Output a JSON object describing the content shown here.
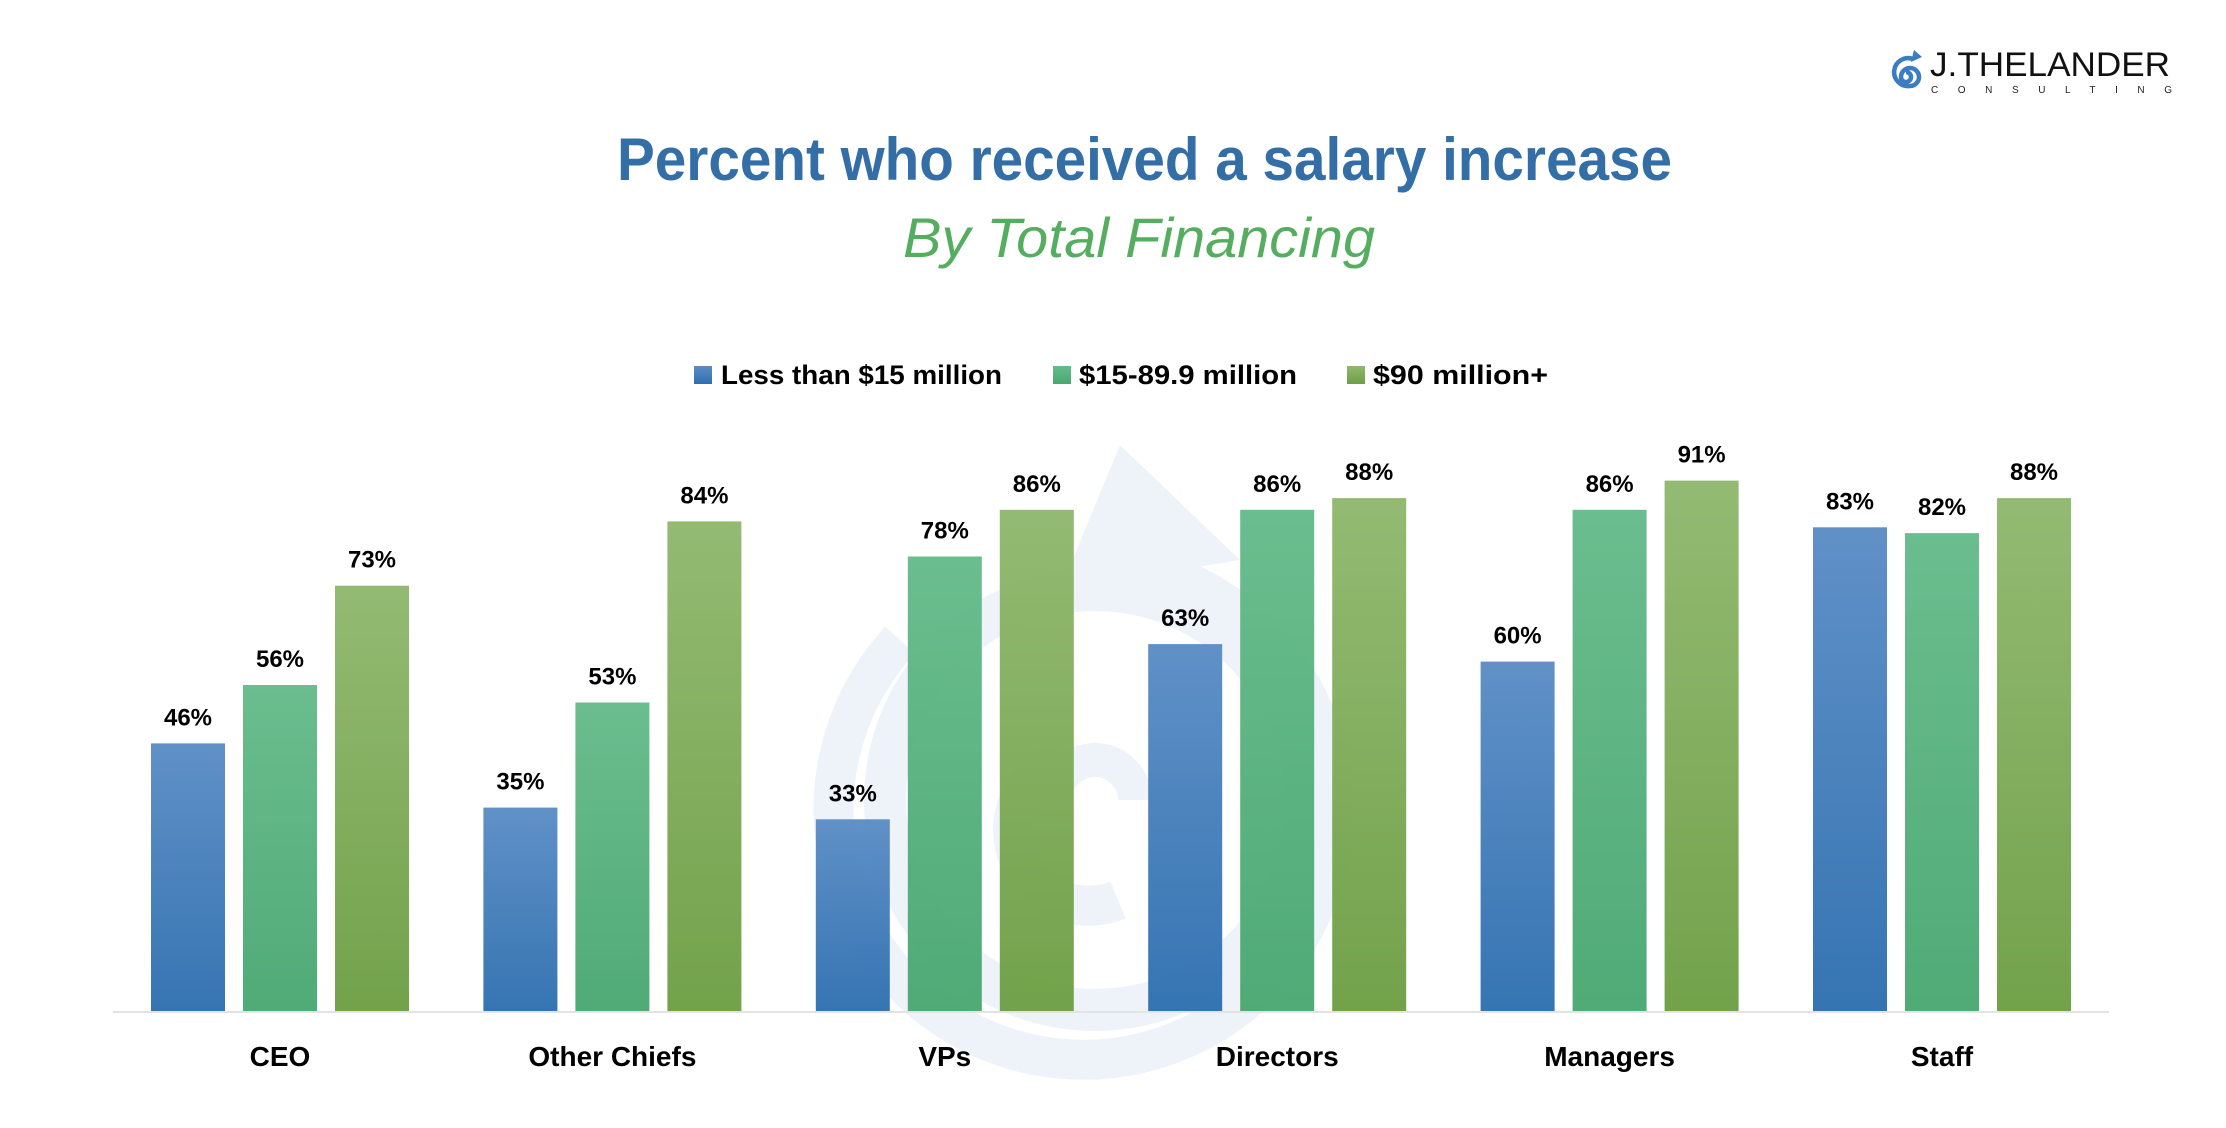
{
  "logo": {
    "name": "J.THELANDER",
    "tagline": "CONSULTING",
    "icon": "spiral-arrow-icon",
    "color": "#3b7dc0"
  },
  "watermark": {
    "icon": "spiral-arrow-icon",
    "color": "#eef3f9"
  },
  "colors": {
    "title": "#336fa6",
    "subtitle": "#55ad5f",
    "axis": "#e3e3e3"
  },
  "chart_data": {
    "type": "bar",
    "title": "Percent who received a salary increase",
    "subtitle": "By Total Financing",
    "xlabel": "",
    "ylabel": "",
    "ylim": [
      0,
      100
    ],
    "grid": false,
    "legend_position": "top-center",
    "categories": [
      "CEO",
      "Other Chiefs",
      "VPs",
      "Directors",
      "Managers",
      "Staff"
    ],
    "series": [
      {
        "name": "Less than $15 million",
        "color_top": "#5b8dc5",
        "color_bottom": "#2f70b0",
        "values": [
          46,
          35,
          33,
          63,
          60,
          83
        ],
        "labels": [
          "46%",
          "35%",
          "33%",
          "63%",
          "60%",
          "83%"
        ]
      },
      {
        "name": "$15-89.9 million",
        "color_top": "#66bb8b",
        "color_bottom": "#4aa872",
        "values": [
          56,
          53,
          78,
          86,
          86,
          82
        ],
        "labels": [
          "56%",
          "53%",
          "78%",
          "86%",
          "86%",
          "82%"
        ]
      },
      {
        "name": "$90 million+",
        "color_top": "#90b86e",
        "color_bottom": "#6e9f45",
        "values": [
          73,
          84,
          86,
          88,
          91,
          88
        ],
        "labels": [
          "73%",
          "84%",
          "86%",
          "88%",
          "91%",
          "88%"
        ]
      }
    ]
  }
}
